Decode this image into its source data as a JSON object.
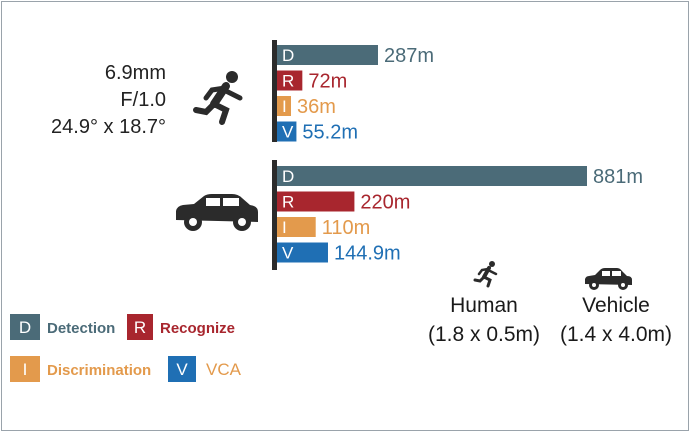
{
  "lens": {
    "focal_length": "6.9mm",
    "aperture": "F/1.0",
    "fov": "24.9° x 18.7°"
  },
  "colors": {
    "detection": "#4b6b78",
    "recognize": "#a8262e",
    "discrimination": "#e39a4c",
    "vca": "#1f6fb4",
    "axis": "#2b2b2b"
  },
  "legend": [
    {
      "letter": "D",
      "label": "Detection",
      "color": "#4b6b78",
      "text_color": "#4b6b78"
    },
    {
      "letter": "R",
      "label": "Recognize",
      "color": "#a8262e",
      "text_color": "#a8262e"
    },
    {
      "letter": "I",
      "label": "Discrimination",
      "color": "#e39a4c",
      "text_color": "#e39a4c"
    },
    {
      "letter": "V",
      "label": "VCA",
      "color": "#1f6fb4",
      "text_color": "#e39a4c"
    }
  ],
  "reference": {
    "human_label": "Human",
    "human_size": "(1.8 x 0.5m)",
    "vehicle_label": "Vehicle",
    "vehicle_size": "(1.4 x 4.0m)",
    "human_icon": "running-person-icon",
    "vehicle_icon": "car-icon"
  },
  "chart_data": {
    "type": "bar",
    "orientation": "horizontal",
    "unit": "m",
    "xlim": [
      0,
      881
    ],
    "groups": [
      {
        "name": "Human",
        "icon": "running-person-icon",
        "bars": [
          {
            "letter": "D",
            "value": 287,
            "label": "287m",
            "color": "#4b6b78"
          },
          {
            "letter": "R",
            "value": 72,
            "label": "72m",
            "color": "#a8262e"
          },
          {
            "letter": "I",
            "value": 36,
            "label": "36m",
            "color": "#e39a4c"
          },
          {
            "letter": "V",
            "value": 55.2,
            "label": "55.2m",
            "color": "#1f6fb4"
          }
        ]
      },
      {
        "name": "Vehicle",
        "icon": "car-icon",
        "bars": [
          {
            "letter": "D",
            "value": 881,
            "label": "881m",
            "color": "#4b6b78"
          },
          {
            "letter": "R",
            "value": 220,
            "label": "220m",
            "color": "#a8262e"
          },
          {
            "letter": "I",
            "value": 110,
            "label": "110m",
            "color": "#e39a4c"
          },
          {
            "letter": "V",
            "value": 144.9,
            "label": "144.9m",
            "color": "#1f6fb4"
          }
        ]
      }
    ]
  }
}
